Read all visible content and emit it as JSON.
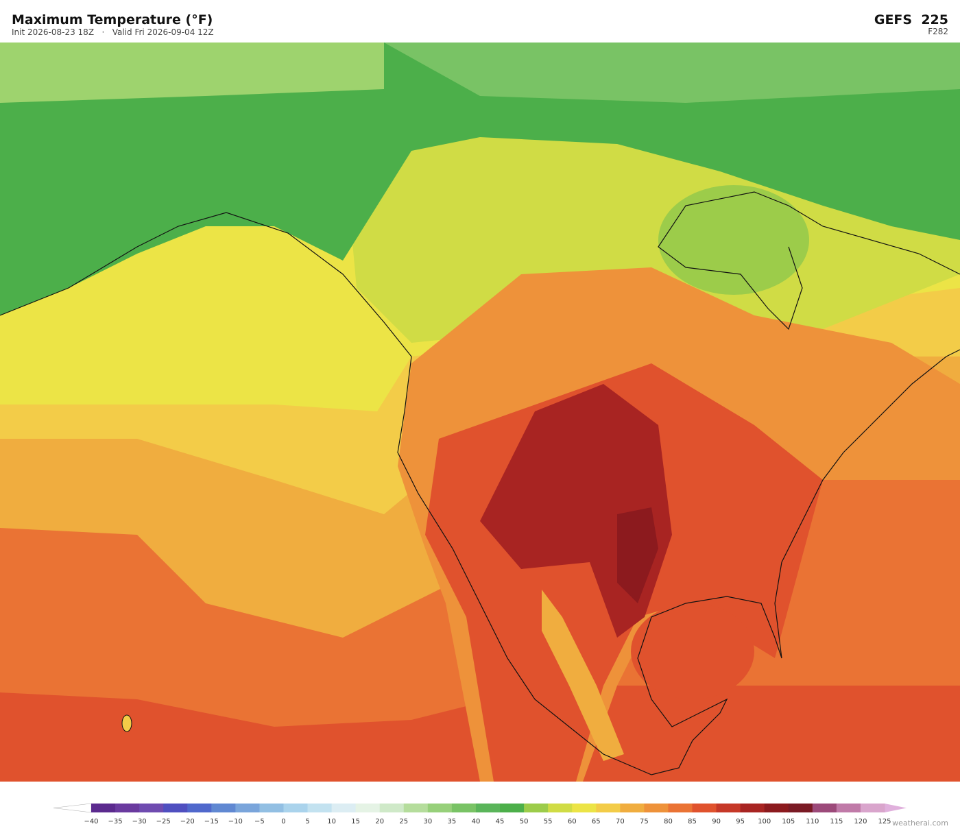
{
  "header": {
    "title": "Maximum Temperature  (°F)",
    "subtitle": "Init 2026-08-23 18Z   ·   Valid Fri 2026-09-04 12Z",
    "model": "GEFS  225",
    "forecast_hour": "F282"
  },
  "colorbar": {
    "labels": [
      "−40",
      "−35",
      "−30",
      "−25",
      "−20",
      "−15",
      "−10",
      "−5",
      "0",
      "5",
      "10",
      "15",
      "20",
      "25",
      "30",
      "35",
      "40",
      "45",
      "50",
      "55",
      "60",
      "65",
      "70",
      "75",
      "80",
      "85",
      "90",
      "95",
      "100",
      "105",
      "110",
      "115",
      "120",
      "125"
    ],
    "colors": [
      "#5b2a8e",
      "#6a3a9f",
      "#6f4bb0",
      "#4f4fc0",
      "#5068cc",
      "#6088d2",
      "#7aa5db",
      "#92bfe3",
      "#aad3ec",
      "#c3e2f0",
      "#dcedf3",
      "#e5f3e5",
      "#cfe9c8",
      "#b5dd9c",
      "#97d07a",
      "#79c365",
      "#5ab55a",
      "#4caf4a",
      "#9ccc4a",
      "#d0dc45",
      "#ece446",
      "#f3cc48",
      "#f0ad3f",
      "#ee923a",
      "#ea7334",
      "#e0522d",
      "#c63828",
      "#a82422",
      "#8c1a1e",
      "#7a1a24",
      "#9c4a7a",
      "#c07aa8",
      "#d9a5cc"
    ],
    "under_color": "#ffffff",
    "over_color": "#e0b0dc"
  },
  "footer": {
    "credit": "weatherai.com"
  }
}
